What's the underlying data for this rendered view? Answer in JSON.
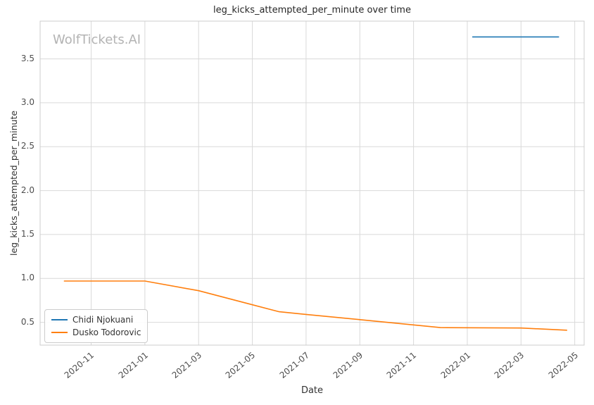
{
  "watermark": "WolfTickets.AI",
  "chart_data": {
    "type": "line",
    "title": "leg_kicks_attempted_per_minute over time",
    "xlabel": "Date",
    "ylabel": "leg_kicks_attempted_per_minute",
    "grid": true,
    "legend_position": "lower left",
    "x_unit": "months since 2020-01",
    "xlim": [
      8.1,
      28.35
    ],
    "ylim": [
      0.24,
      3.93
    ],
    "x_ticks": [
      {
        "label": "2020-11",
        "x": 10
      },
      {
        "label": "2021-01",
        "x": 12
      },
      {
        "label": "2021-03",
        "x": 14
      },
      {
        "label": "2021-05",
        "x": 16
      },
      {
        "label": "2021-07",
        "x": 18
      },
      {
        "label": "2021-09",
        "x": 20
      },
      {
        "label": "2021-11",
        "x": 22
      },
      {
        "label": "2022-01",
        "x": 24
      },
      {
        "label": "2022-03",
        "x": 26
      },
      {
        "label": "2022-05",
        "x": 28
      }
    ],
    "y_ticks": [
      0.5,
      1.0,
      1.5,
      2.0,
      2.5,
      3.0,
      3.5
    ],
    "series": [
      {
        "name": "Chidi Njokuani",
        "color": "#1f77b4",
        "points": [
          {
            "date": "2022-01",
            "x": 24.2,
            "y": 3.75
          },
          {
            "date": "2022-04",
            "x": 27.4,
            "y": 3.75
          }
        ]
      },
      {
        "name": "Dusko Todorovic",
        "color": "#ff7f0e",
        "points": [
          {
            "date": "2020-10",
            "x": 9.0,
            "y": 0.97
          },
          {
            "date": "2021-01",
            "x": 12.0,
            "y": 0.97
          },
          {
            "date": "2021-03",
            "x": 14.0,
            "y": 0.86
          },
          {
            "date": "2021-05",
            "x": 16.0,
            "y": 0.7
          },
          {
            "date": "2021-06",
            "x": 17.0,
            "y": 0.62
          },
          {
            "date": "2021-07",
            "x": 18.0,
            "y": 0.59
          },
          {
            "date": "2021-09",
            "x": 20.0,
            "y": 0.53
          },
          {
            "date": "2021-11",
            "x": 22.0,
            "y": 0.47
          },
          {
            "date": "2021-12",
            "x": 23.0,
            "y": 0.44
          },
          {
            "date": "2022-03",
            "x": 26.0,
            "y": 0.435
          },
          {
            "date": "2022-05",
            "x": 27.7,
            "y": 0.41
          }
        ]
      }
    ]
  }
}
